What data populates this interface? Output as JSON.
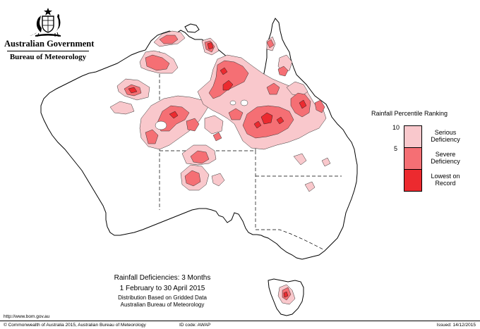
{
  "header": {
    "government": "Australian Government",
    "bureau": "Bureau of Meteorology"
  },
  "legend": {
    "title": "Rainfall Percentile Ranking",
    "ticks": [
      "10",
      "5"
    ],
    "classes": [
      {
        "label_line1": "Serious",
        "label_line2": "Deficiency",
        "color": "#f9c8cc"
      },
      {
        "label_line1": "Severe",
        "label_line2": "Deficiency",
        "color": "#f56f74"
      },
      {
        "label_line1": "Lowest on",
        "label_line2": "Record",
        "color": "#ec2a2f"
      }
    ]
  },
  "map": {
    "title": "Rainfall Deficiencies: 3 Months",
    "period": "1 February to 30 April 2015",
    "distribution": "Distribution Based on Gridded Data",
    "source": "Australian Bureau of Meteorology",
    "outline_color": "#000000",
    "boundary_color": "#000000"
  },
  "footer": {
    "url": "http://www.bom.gov.au",
    "copyright": "© Commonwealth of Australia 2015, Australian Bureau of Meteorology",
    "id_code": "ID code: AWAP",
    "issued": "Issued: 14/12/2015"
  }
}
